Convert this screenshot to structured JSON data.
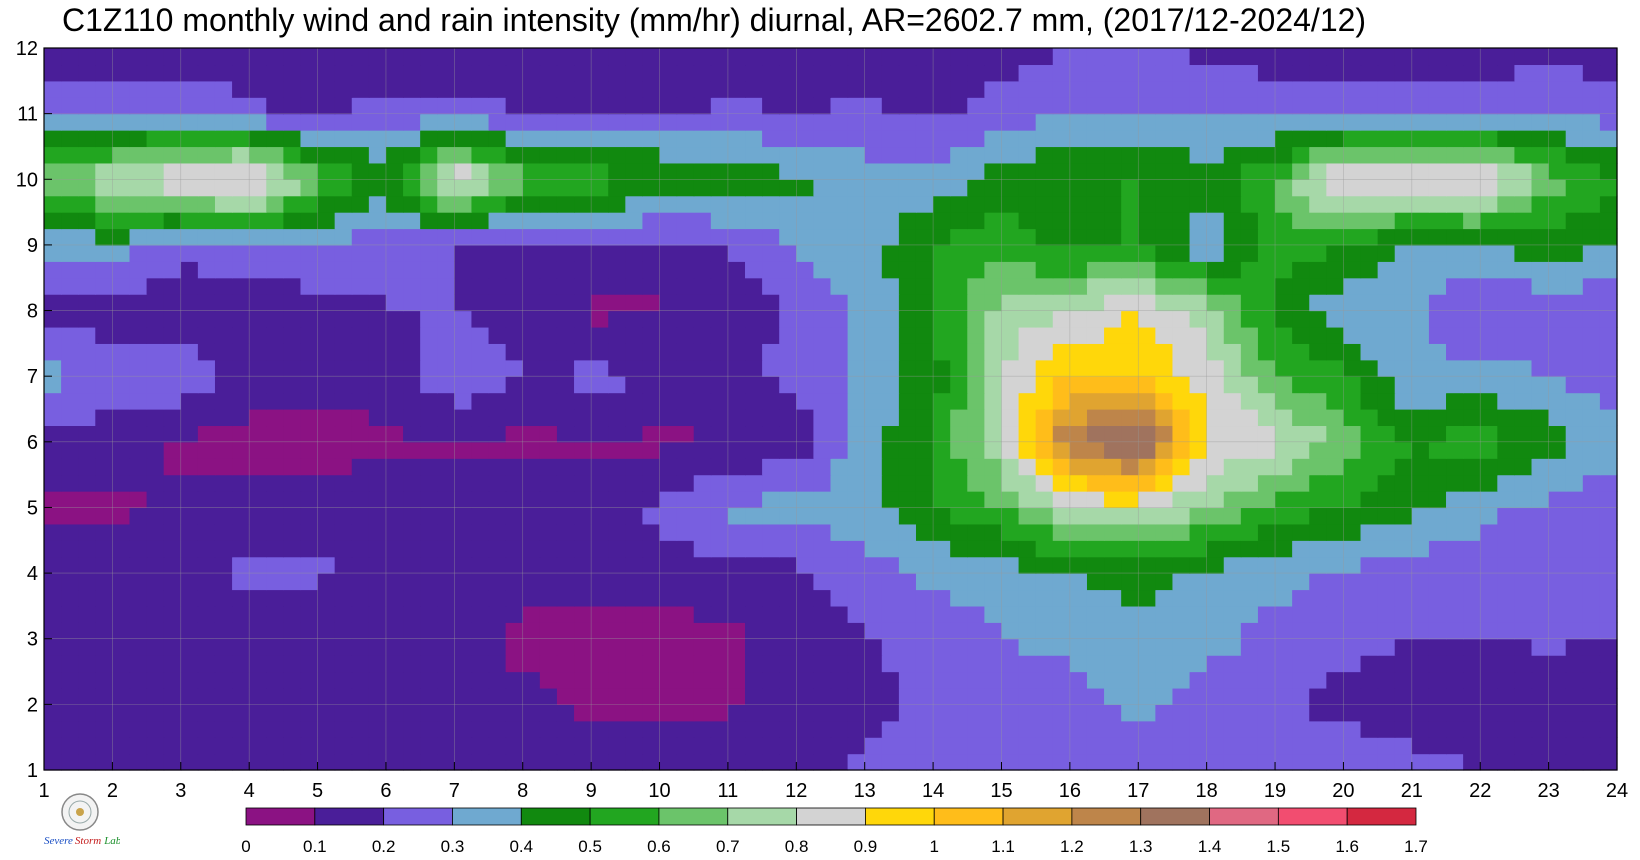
{
  "chart_data": {
    "type": "heatmap",
    "title": "C1Z110 monthly wind and rain intensity (mm/hr) diurnal, AR=2602.7 mm, (2017/12-2024/12)",
    "x_ticks": [
      "1",
      "2",
      "3",
      "4",
      "5",
      "6",
      "7",
      "8",
      "9",
      "10",
      "11",
      "12",
      "13",
      "14",
      "15",
      "16",
      "17",
      "18",
      "19",
      "20",
      "21",
      "22",
      "23",
      "24"
    ],
    "y_ticks": [
      "1",
      "2",
      "3",
      "4",
      "5",
      "6",
      "7",
      "8",
      "9",
      "10",
      "11",
      "12"
    ],
    "xlim": [
      1,
      24
    ],
    "ylim": [
      1,
      12
    ],
    "x_hours": [
      1,
      2,
      3,
      4,
      5,
      6,
      7,
      8,
      9,
      10,
      11,
      12,
      13,
      14,
      15,
      16,
      17,
      18,
      19,
      20,
      21,
      22,
      23,
      24
    ],
    "y_months": [
      1,
      2,
      3,
      4,
      5,
      6,
      7,
      8,
      9,
      10,
      11,
      12
    ],
    "values": [
      [
        0.13,
        0.12,
        0.12,
        0.13,
        0.14,
        0.15,
        0.15,
        0.14,
        0.14,
        0.14,
        0.14,
        0.15,
        0.22,
        0.24,
        0.25,
        0.26,
        0.26,
        0.27,
        0.25,
        0.3,
        0.24,
        0.2,
        0.18,
        0.15
      ],
      [
        0.14,
        0.13,
        0.13,
        0.12,
        0.12,
        0.12,
        0.13,
        0.12,
        0.09,
        0.08,
        0.09,
        0.13,
        0.18,
        0.22,
        0.25,
        0.26,
        0.33,
        0.26,
        0.24,
        0.15,
        0.12,
        0.13,
        0.15,
        0.16
      ],
      [
        0.15,
        0.14,
        0.13,
        0.12,
        0.12,
        0.12,
        0.13,
        0.08,
        0.07,
        0.06,
        0.07,
        0.15,
        0.19,
        0.23,
        0.3,
        0.32,
        0.34,
        0.33,
        0.27,
        0.24,
        0.2,
        0.2,
        0.21,
        0.2
      ],
      [
        0.14,
        0.13,
        0.18,
        0.22,
        0.22,
        0.15,
        0.14,
        0.13,
        0.14,
        0.15,
        0.17,
        0.18,
        0.25,
        0.32,
        0.35,
        0.4,
        0.45,
        0.38,
        0.33,
        0.28,
        0.25,
        0.24,
        0.23,
        0.22
      ],
      [
        0.09,
        0.08,
        0.12,
        0.13,
        0.13,
        0.13,
        0.14,
        0.14,
        0.16,
        0.22,
        0.32,
        0.33,
        0.36,
        0.48,
        0.6,
        0.8,
        0.85,
        0.7,
        0.55,
        0.5,
        0.42,
        0.33,
        0.27,
        0.23
      ],
      [
        0.18,
        0.14,
        0.08,
        0.08,
        0.07,
        0.09,
        0.09,
        0.08,
        0.09,
        0.08,
        0.09,
        0.15,
        0.35,
        0.5,
        0.8,
        1.3,
        1.45,
        0.9,
        0.85,
        0.65,
        0.5,
        0.55,
        0.45,
        0.33
      ],
      [
        0.33,
        0.26,
        0.28,
        0.13,
        0.12,
        0.13,
        0.28,
        0.2,
        0.22,
        0.21,
        0.19,
        0.22,
        0.35,
        0.45,
        0.8,
        1.0,
        1.0,
        0.85,
        0.6,
        0.52,
        0.3,
        0.35,
        0.3,
        0.25
      ],
      [
        0.18,
        0.15,
        0.1,
        0.13,
        0.15,
        0.2,
        0.2,
        0.15,
        0.08,
        0.09,
        0.13,
        0.22,
        0.33,
        0.5,
        0.75,
        0.8,
        0.9,
        0.75,
        0.48,
        0.32,
        0.33,
        0.18,
        0.24,
        0.2
      ],
      [
        0.32,
        0.36,
        0.25,
        0.28,
        0.3,
        0.22,
        0.2,
        0.2,
        0.18,
        0.15,
        0.2,
        0.32,
        0.35,
        0.5,
        0.55,
        0.45,
        0.52,
        0.32,
        0.55,
        0.5,
        0.38,
        0.4,
        0.45,
        0.4
      ],
      [
        0.65,
        0.8,
        0.9,
        1.0,
        0.62,
        0.48,
        0.92,
        0.62,
        0.55,
        0.52,
        0.48,
        0.42,
        0.35,
        0.32,
        0.45,
        0.5,
        0.5,
        0.45,
        0.6,
        0.95,
        0.92,
        0.95,
        0.65,
        0.5
      ],
      [
        0.3,
        0.28,
        0.32,
        0.22,
        0.2,
        0.22,
        0.25,
        0.2,
        0.2,
        0.2,
        0.22,
        0.2,
        0.22,
        0.18,
        0.24,
        0.3,
        0.3,
        0.28,
        0.26,
        0.25,
        0.27,
        0.26,
        0.3,
        0.25
      ],
      [
        0.12,
        0.12,
        0.13,
        0.1,
        0.1,
        0.12,
        0.12,
        0.12,
        0.1,
        0.09,
        0.11,
        0.12,
        0.13,
        0.14,
        0.16,
        0.2,
        0.2,
        0.18,
        0.15,
        0.13,
        0.13,
        0.14,
        0.16,
        0.15
      ]
    ],
    "levels": [
      0,
      0.1,
      0.2,
      0.3,
      0.4,
      0.5,
      0.6,
      0.7,
      0.8,
      0.9,
      1,
      1.1,
      1.2,
      1.3,
      1.4,
      1.5,
      1.6,
      1.7
    ],
    "colorbar_labels": [
      "0",
      "0.1",
      "0.2",
      "0.3",
      "0.4",
      "0.5",
      "0.6",
      "0.7",
      "0.8",
      "0.9",
      "1",
      "1.1",
      "1.2",
      "1.3",
      "1.4",
      "1.5",
      "1.6",
      "1.7"
    ],
    "colors": [
      "#8B1283",
      "#4A1E99",
      "#785FE0",
      "#6FA9D0",
      "#11890F",
      "#22A620",
      "#6BC46A",
      "#A6D8A8",
      "#D3D3D3",
      "#FFD70A",
      "#FFBD1A",
      "#E0A430",
      "#BE854A",
      "#A0735E",
      "#E06882",
      "#F24D70",
      "#D42840"
    ],
    "contour_line_color": "#F0A830",
    "grid": true,
    "colorbar_placement": "bottom"
  },
  "logo": {
    "text_a": "Severe",
    "text_b": "Storm",
    "text_c": "Lab."
  }
}
